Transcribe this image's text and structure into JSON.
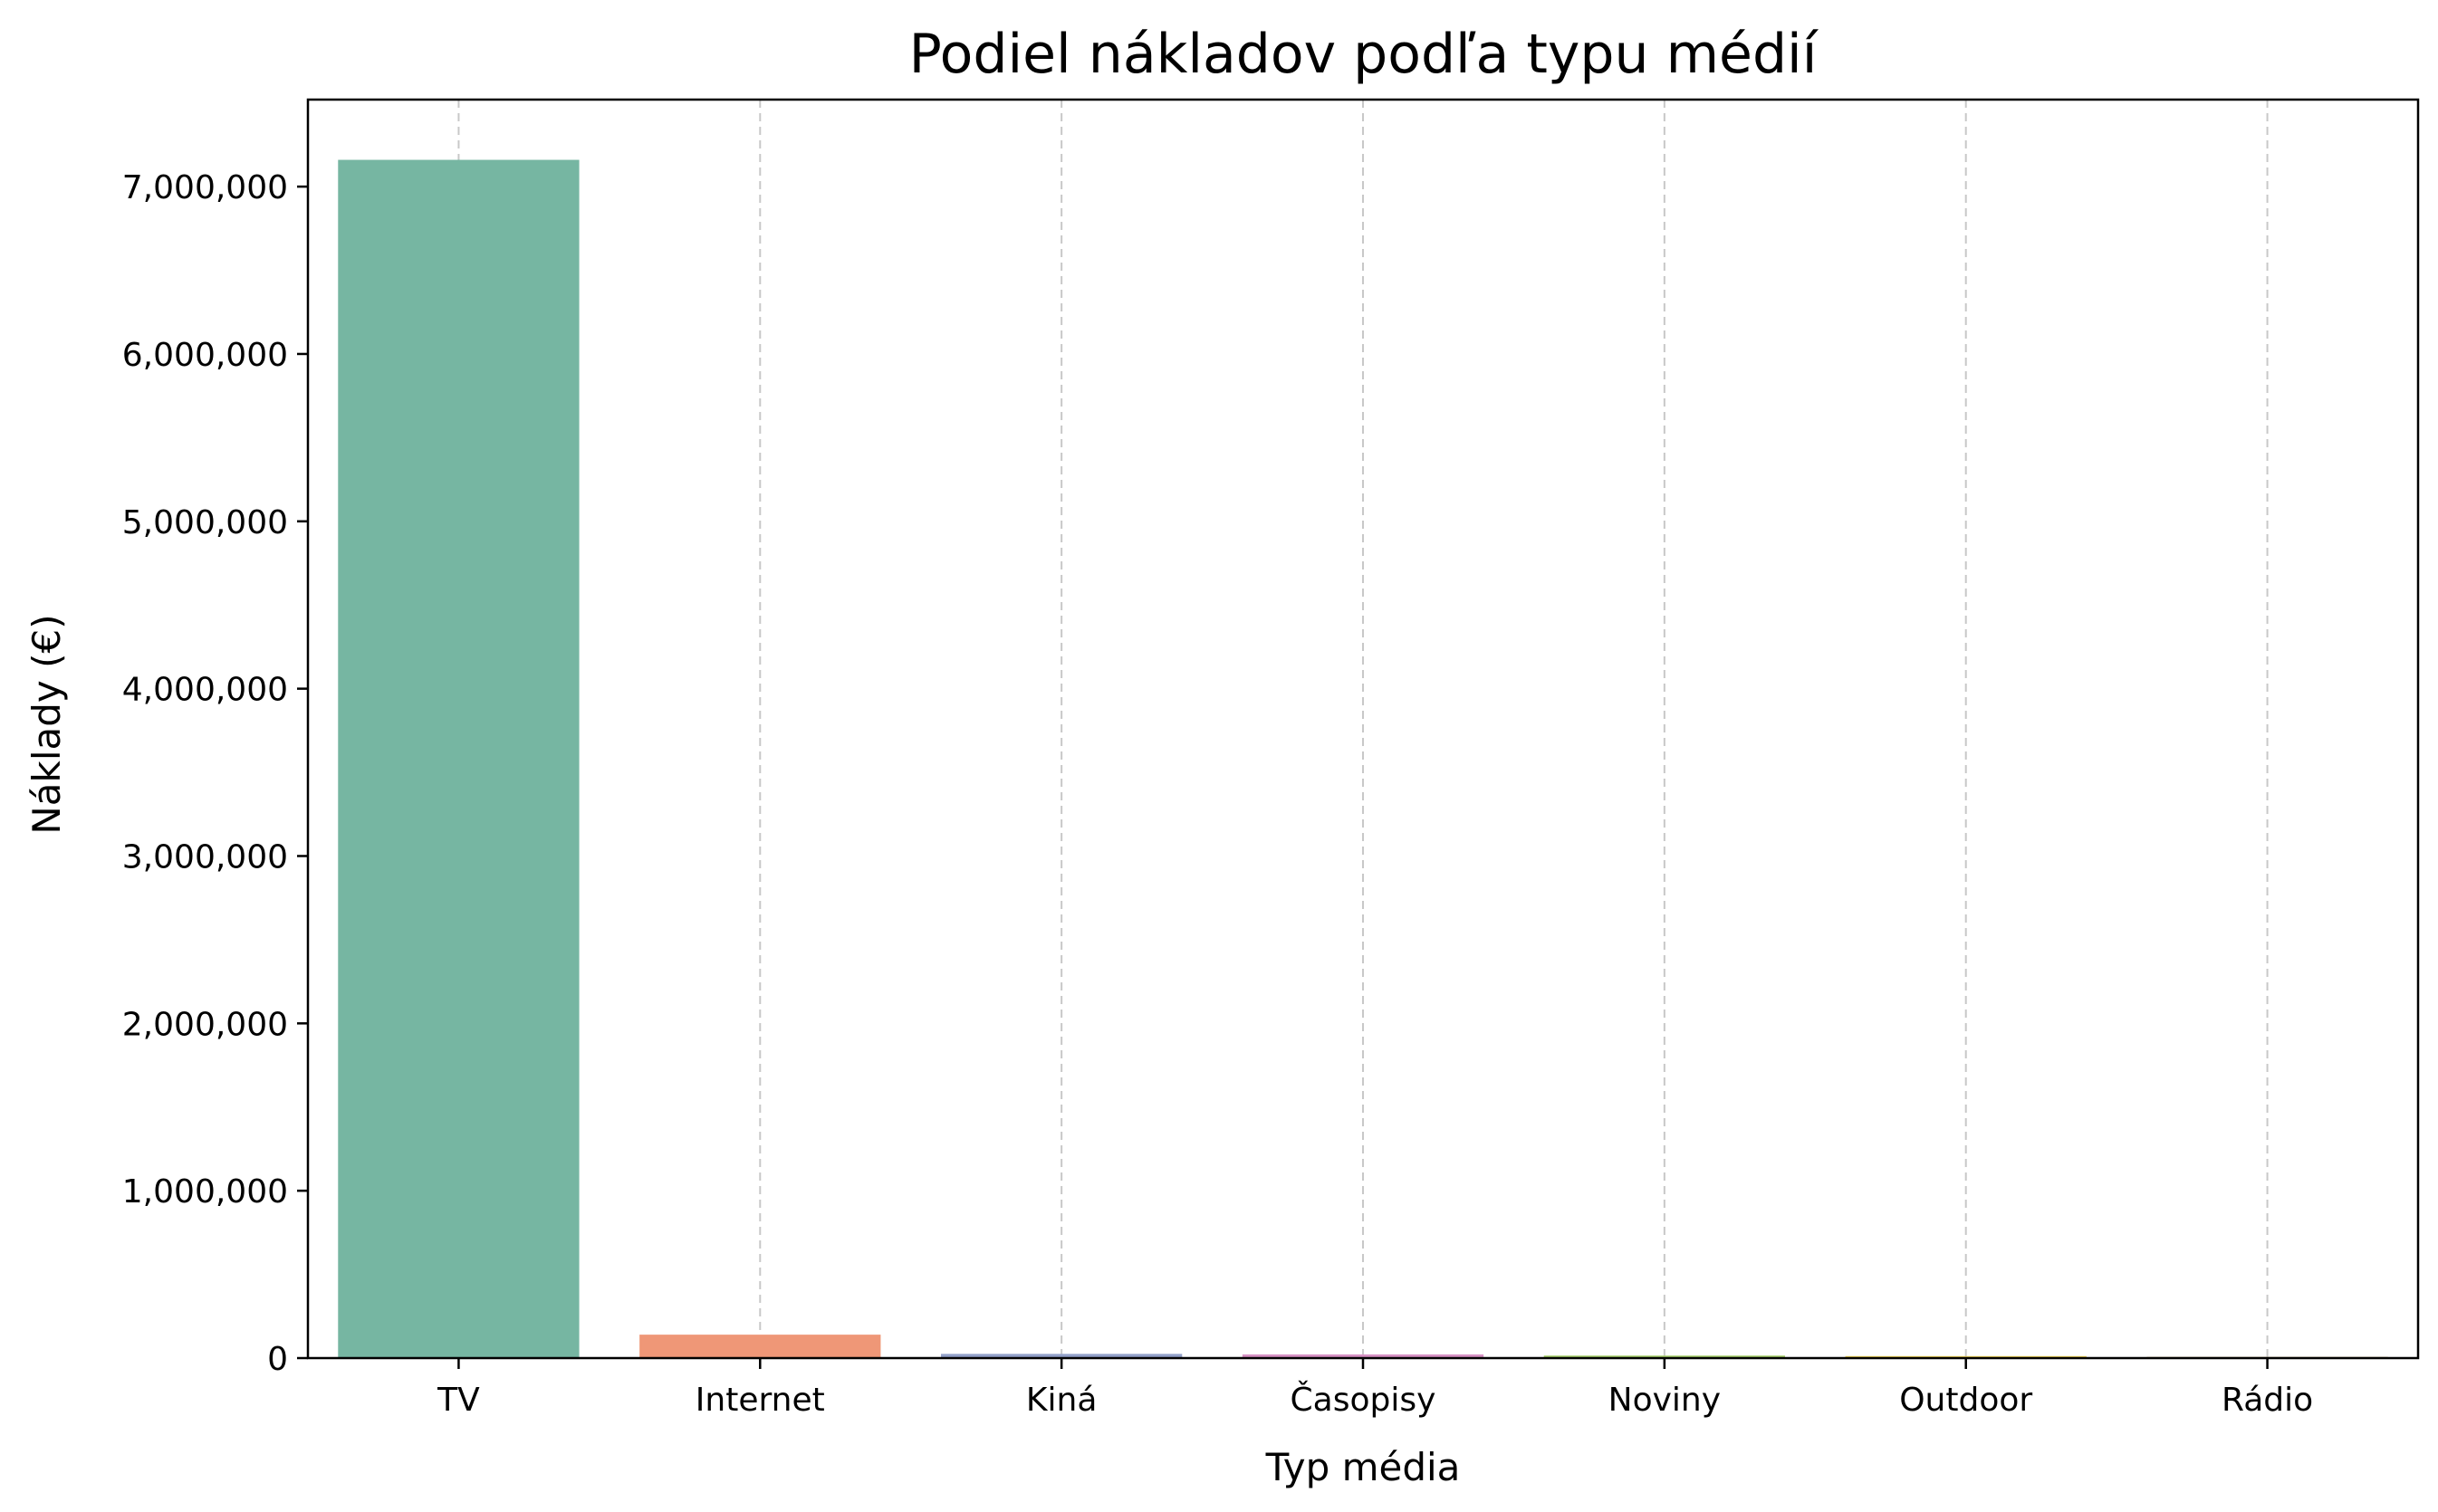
{
  "chart_data": {
    "type": "bar",
    "title": "Podiel nákladov podľa typu médií",
    "xlabel": "Typ média",
    "ylabel": "Náklady (€)",
    "categories": [
      "TV",
      "Internet",
      "Kiná",
      "Časopisy",
      "Noviny",
      "Outdoor",
      "Rádio"
    ],
    "values": [
      7160000,
      140000,
      25000,
      22000,
      15000,
      12000,
      3000
    ],
    "colors": [
      "#76b6a2",
      "#ef9777",
      "#92a1c9",
      "#d792c4",
      "#a7cf6a",
      "#f0d256",
      "#dcc9a0"
    ],
    "ylim": [
      0,
      7520000
    ],
    "yticks": [
      0,
      1000000,
      2000000,
      3000000,
      4000000,
      5000000,
      6000000,
      7000000
    ],
    "ytick_labels": [
      "0",
      "1,000,000",
      "2,000,000",
      "3,000,000",
      "4,000,000",
      "5,000,000",
      "6,000,000",
      "7,000,000"
    ],
    "grid": "x-dashed"
  }
}
